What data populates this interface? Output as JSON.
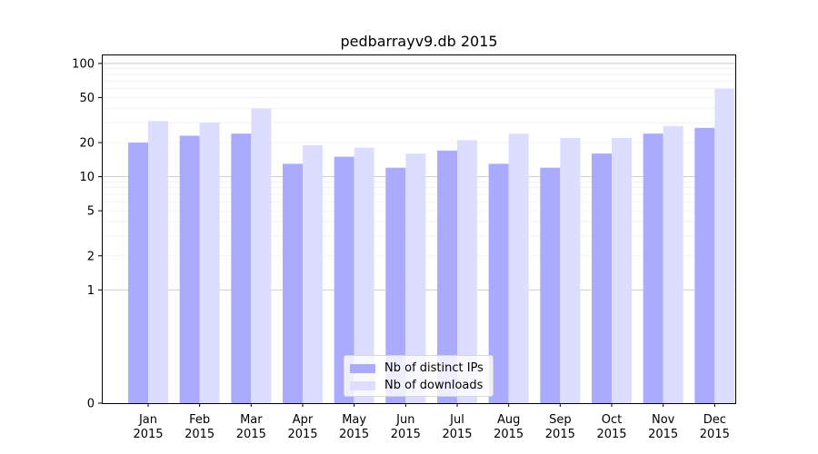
{
  "chart_data": {
    "type": "bar",
    "title": "pedbarrayv9.db 2015",
    "xlabel": "",
    "ylabel": "",
    "yscale": "symlog",
    "ylim": [
      0,
      120
    ],
    "yticks": [
      0,
      1,
      2,
      5,
      10,
      20,
      50,
      100
    ],
    "grid": true,
    "legend_position": "bottom-center",
    "categories": [
      [
        "Jan",
        "2015"
      ],
      [
        "Feb",
        "2015"
      ],
      [
        "Mar",
        "2015"
      ],
      [
        "Apr",
        "2015"
      ],
      [
        "May",
        "2015"
      ],
      [
        "Jun",
        "2015"
      ],
      [
        "Jul",
        "2015"
      ],
      [
        "Aug",
        "2015"
      ],
      [
        "Sep",
        "2015"
      ],
      [
        "Oct",
        "2015"
      ],
      [
        "Nov",
        "2015"
      ],
      [
        "Dec",
        "2015"
      ]
    ],
    "series": [
      {
        "name": "Nb of distinct IPs",
        "color": "#aaaaff",
        "values": [
          20,
          23,
          24,
          13,
          15,
          12,
          17,
          13,
          12,
          16,
          24,
          27
        ]
      },
      {
        "name": "Nb of downloads",
        "color": "#ddddff",
        "values": [
          31,
          30,
          40,
          19,
          18,
          16,
          21,
          24,
          22,
          22,
          28,
          60
        ]
      }
    ]
  }
}
